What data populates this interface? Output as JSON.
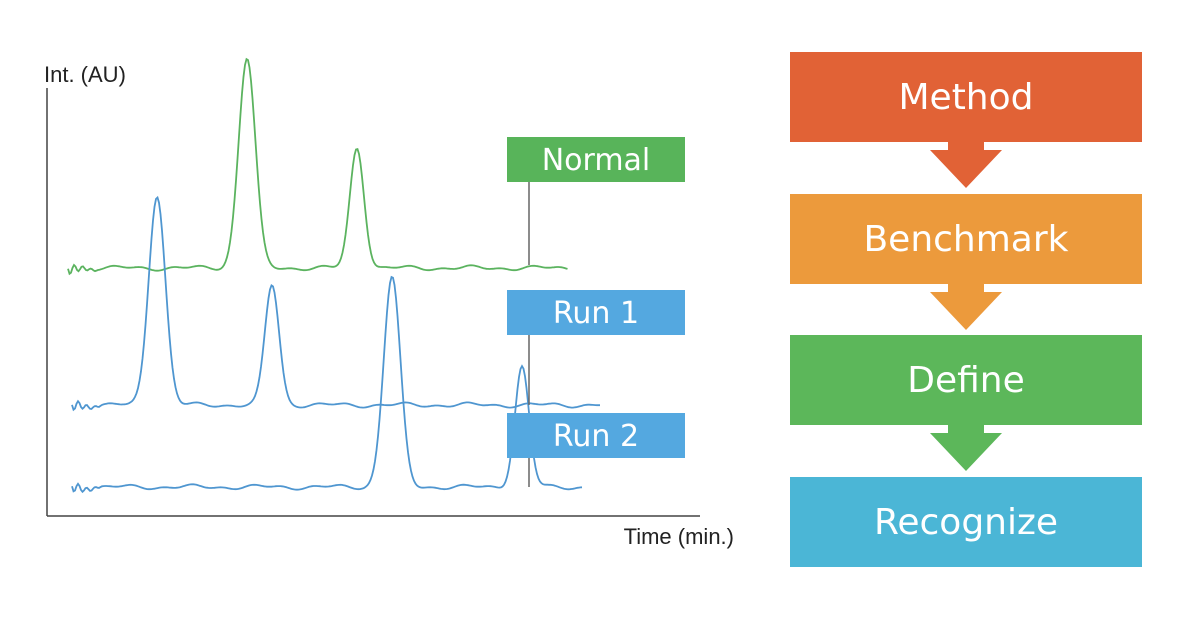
{
  "chart_data": {
    "type": "line",
    "xlabel": "Time (min.)",
    "ylabel": "Int. (AU)",
    "series": [
      {
        "name": "Normal",
        "color": "#5bb35f",
        "label_box_color": "#58b45a",
        "baseline": 0,
        "peaks": [
          {
            "t": 2.0,
            "height": 10.5,
            "width": 0.2
          },
          {
            "t": 3.1,
            "height": 6.0,
            "width": 0.17
          }
        ]
      },
      {
        "name": "Run 1",
        "color": "#4f96d0",
        "label_box_color": "#54a8e0",
        "baseline": 0,
        "peaks": [
          {
            "t": 1.1,
            "height": 10.5,
            "width": 0.2
          },
          {
            "t": 2.25,
            "height": 6.0,
            "width": 0.17
          }
        ]
      },
      {
        "name": "Run 2",
        "color": "#4f96d0",
        "label_box_color": "#54a8e0",
        "baseline": 0,
        "peaks": [
          {
            "t": 3.45,
            "height": 10.5,
            "width": 0.2
          },
          {
            "t": 4.75,
            "height": 6.0,
            "width": 0.17
          }
        ]
      }
    ]
  },
  "flow": {
    "steps": [
      {
        "label": "Method",
        "color": "#e16236",
        "arrow_color": "#e16236"
      },
      {
        "label": "Benchmark",
        "color": "#ec9a3c",
        "arrow_color": "#ec9a3c"
      },
      {
        "label": "Define",
        "color": "#5cb75a",
        "arrow_color": "#5cb75a"
      },
      {
        "label": "Recognize",
        "color": "#4bb6d6",
        "arrow_color": null
      }
    ]
  }
}
